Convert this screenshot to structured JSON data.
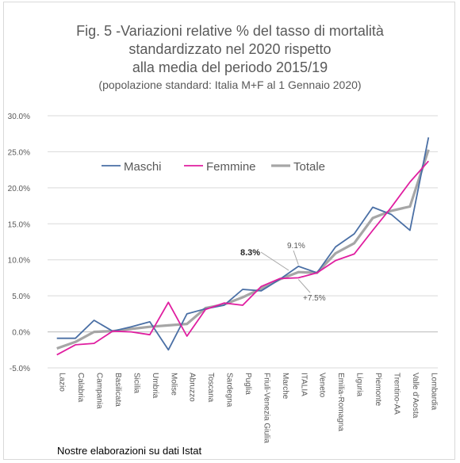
{
  "title_lines": [
    "Fig. 5 -Variazioni relative % del tasso di mortalità",
    "standardizzato nel 2020 rispetto",
    "alla media del periodo 2015/19"
  ],
  "subtitle": "(popolazione standard: Italia M+F al 1 Gennaio 2020)",
  "footer": "Nostre elaborazioni su dati Istat",
  "colors": {
    "maschi": "#4a6fa5",
    "femmine": "#e01ea0",
    "totale": "#a6a6a6",
    "grid": "#d9d9d9",
    "axis": "#bfbfbf",
    "text": "#595959"
  },
  "chart_data": {
    "type": "line",
    "categories": [
      "Lazio",
      "Calabria",
      "Campania",
      "Basilicata",
      "Sicilia",
      "Umbria",
      "Molise",
      "Abruzzo",
      "Toscana",
      "Sardegna",
      "Puglia",
      "Friuli-Venezia Giulia",
      "Marche",
      "ITALIA",
      "Veneto",
      "Emilia-Romagna",
      "Liguria",
      "Piemonte",
      "Trentino-AA",
      "Valle d'Aosta",
      "Lombardia"
    ],
    "series": [
      {
        "name": "Maschi",
        "color": "#4a6fa5",
        "values": [
          -0.9,
          -0.9,
          1.6,
          0.1,
          0.7,
          1.4,
          -2.5,
          2.5,
          3.2,
          3.7,
          5.9,
          5.7,
          7.3,
          9.1,
          8.2,
          11.8,
          13.6,
          17.3,
          16.3,
          14.1,
          27.0
        ]
      },
      {
        "name": "Femmine",
        "color": "#e01ea0",
        "values": [
          -3.2,
          -1.8,
          -1.6,
          0.1,
          0.0,
          -0.4,
          4.1,
          -0.6,
          3.1,
          4.0,
          3.7,
          6.3,
          7.4,
          7.5,
          8.2,
          9.9,
          10.8,
          14.1,
          17.3,
          20.8,
          23.7
        ]
      },
      {
        "name": "Totale",
        "color": "#a6a6a6",
        "values": [
          -2.3,
          -1.4,
          0.0,
          0.1,
          0.4,
          0.7,
          0.9,
          1.1,
          3.3,
          3.8,
          4.8,
          6.0,
          7.3,
          8.3,
          8.2,
          10.9,
          12.3,
          15.8,
          16.8,
          17.4,
          25.3
        ]
      }
    ],
    "ylim": [
      -5,
      30
    ],
    "yticks": [
      "-5.0%",
      "0.0%",
      "5.0%",
      "10.0%",
      "15.0%",
      "20.0%",
      "25.0%",
      "30.0%"
    ],
    "ytick_values": [
      -5,
      0,
      5,
      10,
      15,
      20,
      25,
      30
    ],
    "annotations": [
      {
        "text": "8.3%",
        "bold": true
      },
      {
        "text": "9.1%",
        "bold": false
      },
      {
        "text": "+7.5%",
        "bold": false
      }
    ],
    "legend": [
      "Maschi",
      "Femmine",
      "Totale"
    ],
    "grid": true
  }
}
